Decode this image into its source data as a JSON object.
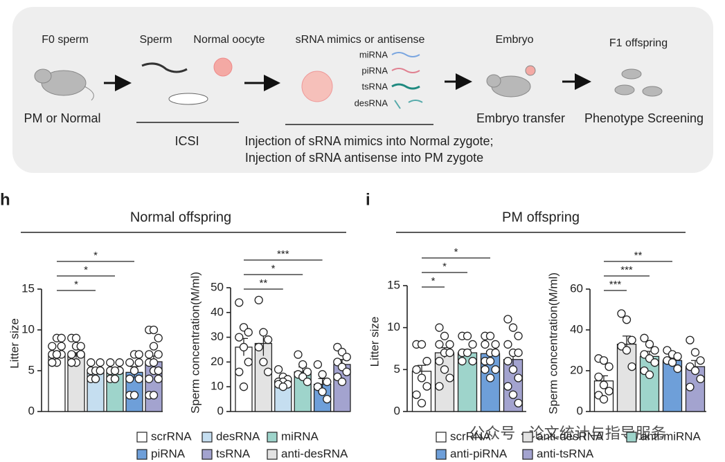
{
  "schematic": {
    "f0": "F0 sperm",
    "pm_normal": "PM or Normal",
    "sperm": "Sperm",
    "oocyte": "Normal oocyte",
    "icsi": "ICSI",
    "srna": "sRNA mimics or antisense",
    "mi": "miRNA",
    "pi": "piRNA",
    "ts": "tsRNA",
    "des": "desRNA",
    "inj1": "Injection of sRNA mimics into Normal zygote;",
    "inj2": "Injection of sRNA antisense into PM zygote",
    "embryo": "Embryo",
    "transfer": "Embryo transfer",
    "f1": "F1 offspring",
    "screen": "Phenotype Screening"
  },
  "panels": [
    {
      "label": "h",
      "title": "Normal offspring",
      "legend": [
        {
          "name": "scrRNA",
          "color": "#ffffff"
        },
        {
          "name": "desRNA",
          "color": "#c5def0"
        },
        {
          "name": "miRNA",
          "color": "#9ed4cb"
        },
        {
          "name": "piRNA",
          "color": "#6e9fd9"
        },
        {
          "name": "tsRNA",
          "color": "#a3a3cf"
        },
        {
          "name": "anti-desRNA",
          "color": "#e3e3e3"
        }
      ]
    },
    {
      "label": "i",
      "title": "PM offspring",
      "legend": [
        {
          "name": "scrRNA",
          "color": "#ffffff"
        },
        {
          "name": "anti-desRNA",
          "color": "#e3e3e3"
        },
        {
          "name": "anti-miRNA",
          "color": "#9ed4cb"
        },
        {
          "name": "anti-piRNA",
          "color": "#6e9fd9"
        },
        {
          "name": "anti-tsRNA",
          "color": "#a3a3cf"
        }
      ]
    }
  ],
  "watermark": "公众号 · 论文统计与指导服务",
  "chart_data": [
    {
      "type": "bar",
      "ylabel": "Litter size",
      "ylim": [
        0,
        15
      ],
      "yticks": [
        0,
        5,
        10,
        15
      ],
      "colors": [
        "#ffffff",
        "#e3e3e3",
        "#c5def0",
        "#9ed4cb",
        "#6e9fd9",
        "#a3a3cf"
      ],
      "values": [
        6.8,
        6.9,
        4.8,
        4.8,
        4.8,
        6.1
      ],
      "errors": [
        0.3,
        0.3,
        0.3,
        0.4,
        0.7,
        0.7
      ],
      "points": [
        [
          6,
          6,
          7,
          7,
          7,
          8,
          8,
          9,
          9,
          6,
          7
        ],
        [
          6,
          6,
          7,
          7,
          8,
          8,
          9,
          9,
          7,
          6
        ],
        [
          4,
          4,
          5,
          5,
          5,
          6,
          6,
          4,
          5
        ],
        [
          4,
          4,
          5,
          5,
          5,
          6,
          6,
          4
        ],
        [
          2,
          2,
          4,
          4,
          5,
          6,
          6,
          7,
          7
        ],
        [
          2,
          2,
          4,
          4,
          5,
          5,
          6,
          6,
          7,
          7,
          8,
          9,
          10,
          10
        ]
      ],
      "brackets": [
        {
          "from": 0,
          "to": 2,
          "label": "*"
        },
        {
          "from": 0,
          "to": 3,
          "label": "*"
        },
        {
          "from": 0,
          "to": 4,
          "label": "*"
        }
      ]
    },
    {
      "type": "bar",
      "ylabel": "Sperm concentration(M/ml)",
      "ylim": [
        0,
        50
      ],
      "yticks": [
        0,
        10,
        20,
        30,
        40,
        50
      ],
      "colors": [
        "#ffffff",
        "#e3e3e3",
        "#c5def0",
        "#9ed4cb",
        "#6e9fd9",
        "#a3a3cf"
      ],
      "values": [
        26,
        27.5,
        12.5,
        16,
        11,
        19
      ],
      "errors": [
        3.5,
        5,
        1,
        2,
        2.3,
        2
      ],
      "points": [
        [
          44,
          34,
          32,
          30,
          26,
          20,
          16,
          10
        ],
        [
          45,
          32,
          29,
          26,
          20,
          16
        ],
        [
          17,
          14,
          13,
          12,
          12,
          11,
          11,
          10
        ],
        [
          23,
          19,
          16,
          15,
          14,
          12
        ],
        [
          19,
          15,
          12,
          10,
          8,
          5
        ],
        [
          26,
          24,
          22,
          20,
          18,
          16,
          14,
          12
        ]
      ],
      "brackets": [
        {
          "from": 0,
          "to": 2,
          "label": "**"
        },
        {
          "from": 0,
          "to": 3,
          "label": "*"
        },
        {
          "from": 0,
          "to": 4,
          "label": "***"
        }
      ]
    },
    {
      "type": "bar",
      "ylabel": "Litter size",
      "ylim": [
        0,
        15
      ],
      "yticks": [
        0,
        5,
        10,
        15
      ],
      "colors": [
        "#ffffff",
        "#e3e3e3",
        "#9ed4cb",
        "#6e9fd9",
        "#a3a3cf"
      ],
      "values": [
        4.8,
        7,
        7,
        6.9,
        6.2
      ],
      "errors": [
        0.7,
        0.6,
        0.4,
        0.3,
        0.7
      ],
      "points": [
        [
          8,
          8,
          6,
          5,
          4,
          3,
          2,
          1
        ],
        [
          10,
          9,
          8,
          8,
          7,
          7,
          6,
          5,
          4,
          3
        ],
        [
          9,
          9,
          8,
          7,
          7,
          6,
          6
        ],
        [
          9,
          9,
          8,
          8,
          7,
          7,
          6,
          6,
          5,
          5,
          4
        ],
        [
          11,
          10,
          9,
          8,
          7,
          7,
          6,
          5,
          4,
          3,
          2,
          1
        ]
      ],
      "brackets": [
        {
          "from": 0,
          "to": 1,
          "label": "*"
        },
        {
          "from": 0,
          "to": 2,
          "label": "*"
        },
        {
          "from": 0,
          "to": 3,
          "label": "*"
        }
      ]
    },
    {
      "type": "bar",
      "ylabel": "Sperm concentration(M/ml)",
      "ylim": [
        0,
        60
      ],
      "yticks": [
        0,
        20,
        40,
        60
      ],
      "colors": [
        "#ffffff",
        "#e3e3e3",
        "#9ed4cb",
        "#6e9fd9",
        "#a3a3cf"
      ],
      "values": [
        15,
        33,
        27,
        25,
        22
      ],
      "errors": [
        2.5,
        4,
        2.5,
        1.5,
        3
      ],
      "points": [
        [
          26,
          25,
          22,
          17,
          13,
          10,
          8,
          6
        ],
        [
          48,
          45,
          35,
          32,
          30,
          22
        ],
        [
          36,
          33,
          30,
          28,
          26,
          24,
          20,
          18
        ],
        [
          30,
          28,
          27,
          25,
          24,
          21
        ],
        [
          35,
          29,
          25,
          22,
          20,
          16,
          12
        ]
      ],
      "brackets": [
        {
          "from": 0,
          "to": 1,
          "label": "***"
        },
        {
          "from": 0,
          "to": 2,
          "label": "***"
        },
        {
          "from": 0,
          "to": 3,
          "label": "**"
        }
      ]
    }
  ]
}
